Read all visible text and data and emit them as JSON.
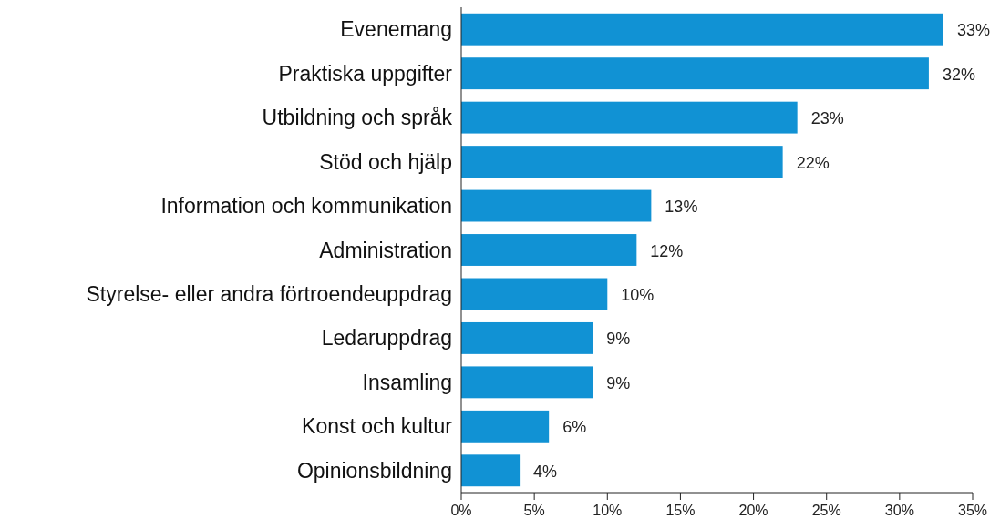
{
  "chart_data": {
    "type": "bar",
    "orientation": "horizontal",
    "categories": [
      "Evenemang",
      "Praktiska uppgifter",
      "Utbildning och språk",
      "Stöd och hjälp",
      "Information och kommunikation",
      "Administration",
      "Styrelse- eller andra förtroendeuppdrag",
      "Ledaruppdrag",
      "Insamling",
      "Konst och kultur",
      "Opinionsbildning"
    ],
    "values": [
      33,
      32,
      23,
      22,
      13,
      12,
      10,
      9,
      9,
      6,
      4
    ],
    "value_labels": [
      "33%",
      "32%",
      "23%",
      "22%",
      "13%",
      "12%",
      "10%",
      "9%",
      "9%",
      "6%",
      "4%"
    ],
    "color": "#1192d4",
    "xlim": [
      0,
      35
    ],
    "xticks": [
      {
        "value": 0,
        "label": "0%"
      },
      {
        "value": 5,
        "label": "5%"
      },
      {
        "value": 10,
        "label": "10%"
      },
      {
        "value": 15,
        "label": "15%"
      },
      {
        "value": 20,
        "label": "20%"
      },
      {
        "value": 25,
        "label": "25%"
      },
      {
        "value": 30,
        "label": "30%"
      },
      {
        "value": 35,
        "label": "35%"
      }
    ],
    "grid": false
  }
}
